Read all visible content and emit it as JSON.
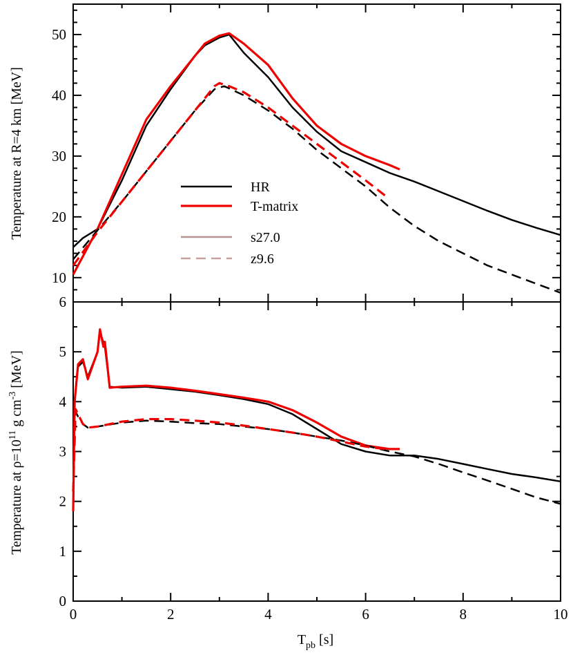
{
  "chart_data": [
    {
      "type": "line",
      "panel": "top",
      "ylabel": "Temperature at R=4 km [MeV]",
      "xlabel": "",
      "xlim": [
        0,
        10
      ],
      "ylim": [
        6,
        55
      ],
      "xticks": [
        0,
        2,
        4,
        6,
        8,
        10
      ],
      "yticks": [
        10,
        20,
        30,
        40,
        50
      ],
      "ytick_labels": [
        "10",
        "20",
        "30",
        "40",
        "50"
      ],
      "series": [
        {
          "name": "HR s27.0",
          "eos": "HR",
          "progenitor": "s27.0",
          "color": "#000000",
          "style": "solid",
          "x": [
            0,
            0.2,
            0.5,
            1.0,
            1.5,
            2.0,
            2.5,
            2.7,
            3.0,
            3.2,
            3.5,
            4.0,
            4.5,
            5.0,
            5.5,
            6.0,
            6.5,
            7.0,
            7.5,
            8.0,
            8.5,
            9.0,
            9.5,
            10.0
          ],
          "y": [
            15,
            16.5,
            18,
            26,
            35,
            41,
            46.5,
            48.2,
            49.5,
            50,
            47,
            43,
            38,
            34,
            30.8,
            29,
            27.2,
            25.8,
            24.2,
            22.6,
            21,
            19.5,
            18.2,
            17
          ]
        },
        {
          "name": "T-matrix s27.0",
          "eos": "T-matrix",
          "progenitor": "s27.0",
          "color": "#ee0000",
          "style": "solid",
          "x": [
            0,
            0.2,
            0.5,
            1.0,
            1.5,
            2.0,
            2.5,
            2.7,
            3.0,
            3.2,
            3.5,
            4.0,
            4.5,
            5.0,
            5.5,
            6.0,
            6.5,
            6.7
          ],
          "y": [
            10.5,
            13.5,
            18,
            27,
            36,
            41.5,
            46.5,
            48.5,
            49.8,
            50.2,
            48.5,
            45,
            39.5,
            35,
            32,
            30,
            28.5,
            27.8
          ]
        },
        {
          "name": "HR z9.6",
          "eos": "HR",
          "progenitor": "z9.6",
          "color": "#000000",
          "style": "dashed",
          "x": [
            0,
            0.5,
            1.0,
            1.5,
            2.0,
            2.5,
            2.9,
            3.1,
            3.5,
            4.0,
            4.5,
            5.0,
            5.5,
            6.0,
            6.5,
            7.0,
            7.5,
            8.0,
            8.5,
            9.0,
            9.5,
            10.0
          ],
          "y": [
            13,
            17.8,
            22.5,
            27.5,
            32.5,
            37.5,
            41,
            41.5,
            40,
            37.5,
            34.5,
            31,
            28,
            25,
            21.5,
            18.5,
            16,
            14,
            12,
            10.5,
            9,
            7.5
          ]
        },
        {
          "name": "T-matrix z9.6",
          "eos": "T-matrix",
          "progenitor": "z9.6",
          "color": "#ee0000",
          "style": "dashed",
          "x": [
            0,
            0.5,
            1.0,
            1.5,
            2.0,
            2.5,
            2.9,
            3.0,
            3.2,
            3.5,
            4.0,
            4.5,
            5.0,
            5.5,
            6.0,
            6.4
          ],
          "y": [
            12,
            17.5,
            22.5,
            27.5,
            32.5,
            37.5,
            41.5,
            42,
            41.5,
            40.5,
            38,
            35,
            32,
            29,
            26,
            23.5
          ]
        }
      ]
    },
    {
      "type": "line",
      "panel": "bottom",
      "ylabel": "Temperature at ρ=10",
      "ylabel_sup1": "11",
      "ylabel_mid": " g cm",
      "ylabel_sup2": "-3",
      "ylabel_end": " [MeV]",
      "xlabel": "T",
      "xlabel_sub": "pb",
      "xlabel_end": " [s]",
      "xlim": [
        0,
        10
      ],
      "ylim": [
        0,
        6
      ],
      "xticks": [
        0,
        2,
        4,
        6,
        8,
        10
      ],
      "xtick_labels": [
        "0",
        "2",
        "4",
        "6",
        "8",
        "10"
      ],
      "yticks": [
        0,
        1,
        2,
        3,
        4,
        5,
        6
      ],
      "ytick_labels": [
        "0",
        "1",
        "2",
        "3",
        "4",
        "5",
        "6"
      ],
      "series": [
        {
          "name": "HR s27.0",
          "eos": "HR",
          "progenitor": "s27.0",
          "color": "#000000",
          "style": "solid",
          "x": [
            0,
            0.03,
            0.1,
            0.2,
            0.3,
            0.5,
            0.55,
            0.65,
            0.75,
            1.0,
            1.5,
            2.0,
            2.5,
            3.0,
            3.5,
            4.0,
            4.5,
            5.0,
            5.5,
            6.0,
            6.5,
            7.0,
            7.5,
            8.0,
            8.5,
            9.0,
            9.5,
            10.0
          ],
          "y": [
            1.8,
            4.0,
            4.7,
            4.8,
            4.5,
            5.0,
            5.4,
            5.1,
            4.3,
            4.28,
            4.3,
            4.25,
            4.2,
            4.13,
            4.05,
            3.95,
            3.75,
            3.45,
            3.15,
            3.0,
            2.92,
            2.92,
            2.85,
            2.75,
            2.65,
            2.55,
            2.48,
            2.4
          ]
        },
        {
          "name": "T-matrix s27.0",
          "eos": "T-matrix",
          "progenitor": "s27.0",
          "color": "#ee0000",
          "style": "solid",
          "x": [
            0,
            0.03,
            0.1,
            0.2,
            0.3,
            0.5,
            0.55,
            0.62,
            0.65,
            0.75,
            1.0,
            1.5,
            2.0,
            2.5,
            3.0,
            3.5,
            4.0,
            4.5,
            5.0,
            5.5,
            6.0,
            6.5,
            6.7
          ],
          "y": [
            1.8,
            4.0,
            4.75,
            4.85,
            4.45,
            5.0,
            5.45,
            5.1,
            5.2,
            4.28,
            4.3,
            4.32,
            4.28,
            4.22,
            4.15,
            4.08,
            4.0,
            3.83,
            3.58,
            3.3,
            3.12,
            3.05,
            3.05
          ]
        },
        {
          "name": "HR z9.6",
          "eos": "HR",
          "progenitor": "z9.6",
          "color": "#000000",
          "style": "dashed",
          "x": [
            0,
            0.05,
            0.1,
            0.2,
            0.3,
            0.5,
            1.0,
            1.5,
            2.0,
            2.5,
            3.0,
            3.5,
            4.0,
            4.5,
            5.0,
            5.5,
            6.0,
            6.5,
            7.0,
            7.5,
            8.0,
            8.5,
            9.0,
            9.5,
            10.0
          ],
          "y": [
            2.2,
            3.8,
            3.7,
            3.55,
            3.48,
            3.5,
            3.58,
            3.62,
            3.6,
            3.57,
            3.55,
            3.5,
            3.45,
            3.38,
            3.3,
            3.22,
            3.12,
            3.0,
            2.9,
            2.75,
            2.58,
            2.42,
            2.25,
            2.08,
            1.95
          ]
        },
        {
          "name": "T-matrix z9.6",
          "eos": "T-matrix",
          "progenitor": "z9.6",
          "color": "#ee0000",
          "style": "dashed",
          "x": [
            0,
            0.05,
            0.1,
            0.2,
            0.3,
            0.5,
            1.0,
            1.5,
            2.0,
            2.5,
            3.0,
            3.5,
            4.0,
            4.5,
            5.0,
            5.5,
            6.0,
            6.4
          ],
          "y": [
            2.2,
            3.85,
            3.75,
            3.55,
            3.48,
            3.5,
            3.6,
            3.65,
            3.65,
            3.62,
            3.58,
            3.52,
            3.45,
            3.38,
            3.3,
            3.2,
            3.1,
            3.05
          ]
        }
      ]
    }
  ],
  "legend": {
    "placement": "center-left of top panel",
    "entries": [
      {
        "label": "HR",
        "color": "#000000",
        "style": "solid"
      },
      {
        "label": "T-matrix",
        "color": "#ee0000",
        "style": "solid"
      },
      {
        "label": "s27.0",
        "color": "#b89090",
        "style": "solid"
      },
      {
        "label": "z9.6",
        "color": "#c8a0a0",
        "style": "dashed"
      }
    ]
  }
}
